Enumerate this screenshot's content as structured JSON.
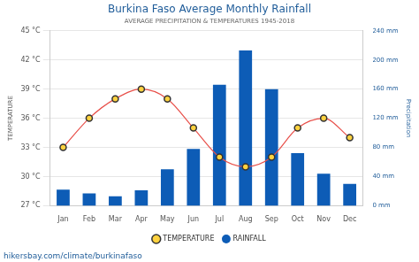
{
  "chart_data": {
    "type": "bar",
    "title": "Burkina Faso Average Monthly Rainfall",
    "subtitle": "AVERAGE PRECIPITATION & TEMPERATURES 1945-2018",
    "source": "hikersbay.com/climate/burkinafaso",
    "y_label": "TEMPERATURE",
    "y2_label": "Precipitation",
    "categories": [
      "Jan",
      "Feb",
      "Mar",
      "Apr",
      "May",
      "Jun",
      "Jul",
      "Aug",
      "Sep",
      "Oct",
      "Nov",
      "Dec"
    ],
    "series": [
      {
        "name": "TEMPERATURE",
        "type": "line",
        "color": "#e8504a",
        "marker": "circle",
        "values": [
          33,
          36,
          38,
          39,
          38,
          35,
          32,
          31,
          32,
          35,
          36,
          34
        ]
      },
      {
        "name": "RAINFALL",
        "type": "bar",
        "color": "#0d5cb6",
        "axis": "y2",
        "values": [
          22,
          17,
          13,
          21,
          50,
          78,
          166,
          213,
          160,
          72,
          44,
          30
        ]
      }
    ],
    "ylim": [
      27,
      45
    ],
    "yticks": [
      {
        "value": 27,
        "label": "27 °C"
      },
      {
        "value": 30,
        "label": "30 °C"
      },
      {
        "value": 33,
        "label": "33 °C"
      },
      {
        "value": 36,
        "label": "36 °C"
      },
      {
        "value": 39,
        "label": "39 °C"
      },
      {
        "value": 42,
        "label": "42 °C"
      },
      {
        "value": 45,
        "label": "45 °C"
      }
    ],
    "y2lim": [
      0,
      240
    ],
    "y2ticks": [
      {
        "value": 0,
        "label": "0 mm"
      },
      {
        "value": 40,
        "label": "40 mm"
      },
      {
        "value": 80,
        "label": "80 mm"
      },
      {
        "value": 120,
        "label": "120 mm"
      },
      {
        "value": 160,
        "label": "160 mm"
      },
      {
        "value": 200,
        "label": "200 mm"
      },
      {
        "value": 240,
        "label": "240 mm"
      }
    ],
    "grid": true,
    "legend": "bottom"
  }
}
